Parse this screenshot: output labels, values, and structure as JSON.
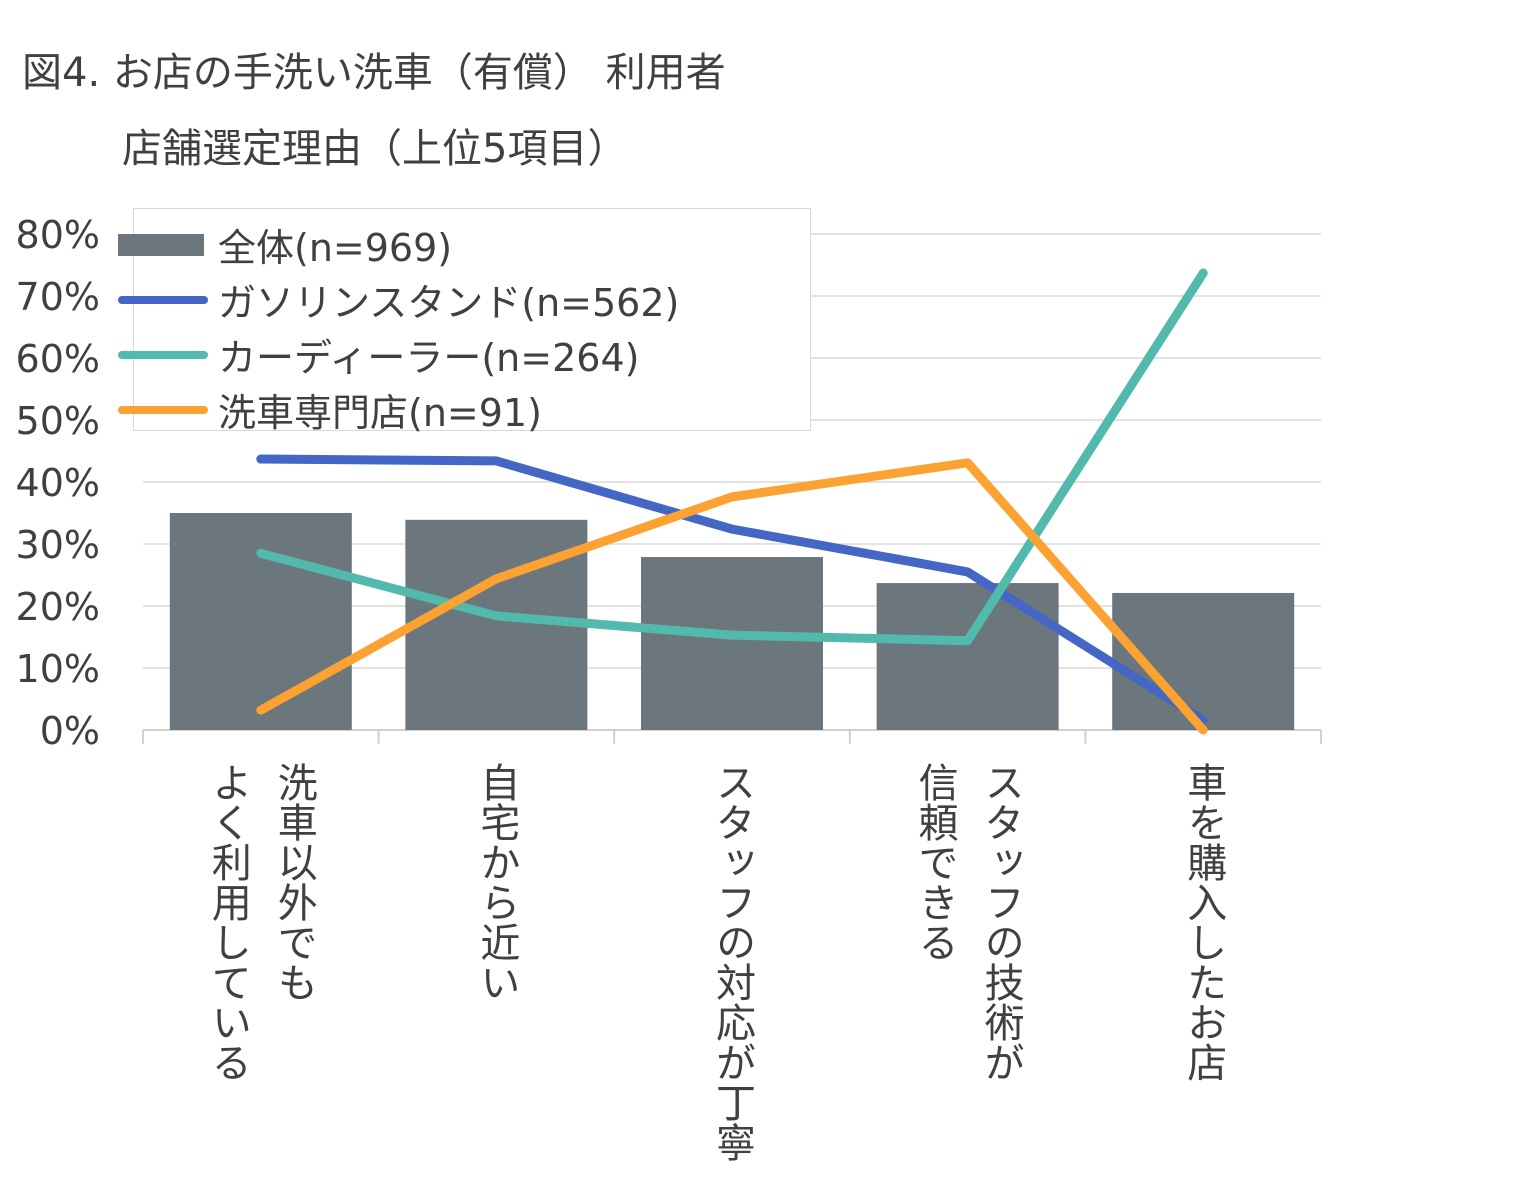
{
  "title_line1": "図4. お店の手洗い洗車（有償） 利用者",
  "title_line2": "店舗選定理由（上位5項目）",
  "chart_data": {
    "type": "bar+line",
    "title": "図4. お店の手洗い洗車（有償） 利用者 店舗選定理由（上位5項目）",
    "categories": [
      "洗車以外でも\nよく利用している",
      "自宅から近い",
      "スタッフの対応が丁寧",
      "スタッフの技術が\n信頼できる",
      "車を購入したお店"
    ],
    "ylim": [
      0,
      80
    ],
    "yticks": [
      "0%",
      "10%",
      "20%",
      "30%",
      "40%",
      "50%",
      "60%",
      "70%",
      "80%"
    ],
    "grid": true,
    "legend_position": "top-left",
    "series": [
      {
        "name": "全体(n=969)",
        "type": "bar",
        "color": "#6b767d",
        "values": [
          35.0,
          33.9,
          27.9,
          23.7,
          22.1
        ]
      },
      {
        "name": "ガソリンスタンド(n=562)",
        "type": "line",
        "color": "#4466c4",
        "values": [
          43.7,
          43.4,
          32.4,
          25.5,
          1.6
        ]
      },
      {
        "name": "カーディーラー(n=264)",
        "type": "line",
        "color": "#52b9ad",
        "values": [
          28.5,
          18.4,
          15.3,
          14.4,
          73.7
        ]
      },
      {
        "name": "洗車専門店(n=91)",
        "type": "line",
        "color": "#fba232",
        "values": [
          3.2,
          24.4,
          37.6,
          43.1,
          0.0
        ]
      }
    ]
  }
}
